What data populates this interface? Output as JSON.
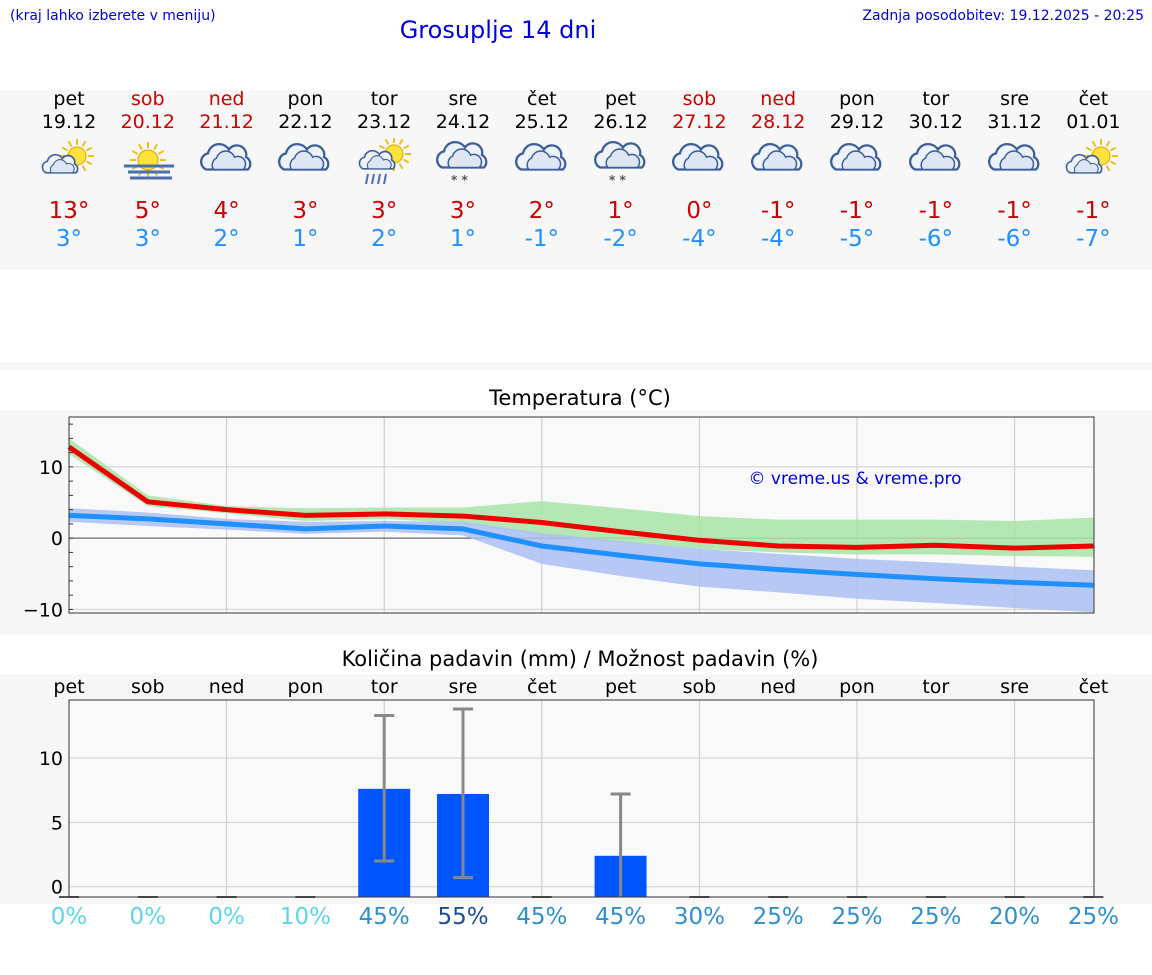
{
  "header": {
    "hint": "(kraj lahko izberete v meniju)",
    "title": "Grosuplje 14 dni",
    "updated": "Zadnja posodobitev: 19.12.2025 - 20:25"
  },
  "days": [
    {
      "name": "pet",
      "date": "19.12",
      "weekend": false,
      "icon": "sun-cloud-icon",
      "max": "13°",
      "min": "3°"
    },
    {
      "name": "sob",
      "date": "20.12",
      "weekend": true,
      "icon": "sun-fog-icon",
      "max": "5°",
      "min": "3°"
    },
    {
      "name": "ned",
      "date": "21.12",
      "weekend": true,
      "icon": "cloudy-icon",
      "max": "4°",
      "min": "2°"
    },
    {
      "name": "pon",
      "date": "22.12",
      "weekend": false,
      "icon": "cloudy-icon",
      "max": "3°",
      "min": "1°"
    },
    {
      "name": "tor",
      "date": "23.12",
      "weekend": false,
      "icon": "sun-cloud-rain-icon",
      "max": "3°",
      "min": "2°"
    },
    {
      "name": "sre",
      "date": "24.12",
      "weekend": false,
      "icon": "cloudy-snow-icon",
      "max": "3°",
      "min": "1°"
    },
    {
      "name": "čet",
      "date": "25.12",
      "weekend": false,
      "icon": "cloudy-icon",
      "max": "2°",
      "min": "-1°"
    },
    {
      "name": "pet",
      "date": "26.12",
      "weekend": false,
      "icon": "cloudy-snow-icon",
      "max": "1°",
      "min": "-2°"
    },
    {
      "name": "sob",
      "date": "27.12",
      "weekend": true,
      "icon": "cloudy-icon",
      "max": "0°",
      "min": "-4°"
    },
    {
      "name": "ned",
      "date": "28.12",
      "weekend": true,
      "icon": "cloudy-icon",
      "max": "-1°",
      "min": "-4°"
    },
    {
      "name": "pon",
      "date": "29.12",
      "weekend": false,
      "icon": "cloudy-icon",
      "max": "-1°",
      "min": "-5°"
    },
    {
      "name": "tor",
      "date": "30.12",
      "weekend": false,
      "icon": "cloudy-icon",
      "max": "-1°",
      "min": "-6°"
    },
    {
      "name": "sre",
      "date": "31.12",
      "weekend": false,
      "icon": "cloudy-icon",
      "max": "-1°",
      "min": "-6°"
    },
    {
      "name": "čet",
      "date": "01.01",
      "weekend": false,
      "icon": "sun-cloud-icon",
      "max": "-1°",
      "min": "-7°"
    }
  ],
  "colors": {
    "max": "#ee0000",
    "min": "#1e90ff",
    "max_band": "#a8e4a8",
    "min_band": "#aac0f2",
    "bar": "#0055ff",
    "errbar": "#888888",
    "link": "#0000dd"
  },
  "chart_data": [
    {
      "type": "line",
      "title": "Temperatura (°C)",
      "watermark": "© vreme.us & vreme.pro",
      "x": [
        0,
        1,
        2,
        3,
        4,
        5,
        6,
        7,
        8,
        9,
        10,
        11,
        12,
        13
      ],
      "ylim": [
        -10.5,
        17
      ],
      "yticks": [
        -10,
        0,
        10
      ],
      "ytick_labels": [
        "−10",
        "0",
        "10"
      ],
      "series": [
        {
          "name": "max",
          "values": [
            12.8,
            5.1,
            4.0,
            3.2,
            3.4,
            3.1,
            2.2,
            0.9,
            -0.3,
            -1.1,
            -1.3,
            -1.0,
            -1.4,
            -1.1
          ]
        },
        {
          "name": "min",
          "values": [
            3.2,
            2.7,
            2.0,
            1.3,
            1.7,
            1.3,
            -1.1,
            -2.4,
            -3.6,
            -4.4,
            -5.1,
            -5.7,
            -6.2,
            -6.6
          ]
        }
      ],
      "max_band_upper": [
        14.0,
        6.0,
        4.5,
        4.2,
        4.3,
        4.3,
        5.2,
        4.2,
        3.1,
        2.6,
        2.6,
        2.6,
        2.4,
        2.9
      ],
      "max_band_lower": [
        11.8,
        4.5,
        3.5,
        2.4,
        2.7,
        2.1,
        0.4,
        -0.6,
        -1.5,
        -2.0,
        -2.3,
        -2.3,
        -2.5,
        -2.6
      ],
      "min_band_upper": [
        4.2,
        3.6,
        2.7,
        2.3,
        2.4,
        2.3,
        0.7,
        -0.4,
        -1.5,
        -2.2,
        -2.9,
        -3.4,
        -4.0,
        -4.5
      ],
      "min_band_lower": [
        2.3,
        1.7,
        1.2,
        0.6,
        0.9,
        0.4,
        -3.6,
        -5.3,
        -6.8,
        -7.6,
        -8.5,
        -9.1,
        -9.8,
        -10.4
      ]
    },
    {
      "type": "bar",
      "title": "Količina padavin (mm) / Možnost padavin (%)",
      "categories": [
        "pet",
        "sob",
        "ned",
        "pon",
        "tor",
        "sre",
        "čet",
        "pet",
        "sob",
        "ned",
        "pon",
        "tor",
        "sre",
        "čet"
      ],
      "values": [
        0,
        0,
        0,
        0,
        7.6,
        7.2,
        0,
        2.4,
        0,
        0,
        0,
        0,
        0,
        0
      ],
      "error_low": [
        0,
        0,
        0,
        0,
        2.0,
        0.7,
        0,
        0,
        0,
        0,
        0,
        0,
        0,
        0
      ],
      "error_high": [
        0,
        0,
        0,
        0,
        13.3,
        13.8,
        0,
        7.2,
        0,
        0,
        0,
        0,
        0,
        0
      ],
      "ylim": [
        -0.8,
        14.5
      ],
      "yticks": [
        0,
        5,
        10
      ],
      "ytick_labels": [
        "0",
        "5",
        "10"
      ],
      "probabilities": [
        "0%",
        "0%",
        "0%",
        "10%",
        "45%",
        "55%",
        "45%",
        "45%",
        "30%",
        "25%",
        "25%",
        "25%",
        "20%",
        "25%"
      ],
      "probability_colors": [
        "#5cd6e6",
        "#5cd6e6",
        "#5cd6e6",
        "#5cd6e6",
        "#2e8fcf",
        "#1a4f95",
        "#2e8fcf",
        "#2e8fcf",
        "#2e8fcf",
        "#2e8fcf",
        "#2e8fcf",
        "#2e8fcf",
        "#2e8fcf",
        "#2e8fcf"
      ]
    }
  ]
}
